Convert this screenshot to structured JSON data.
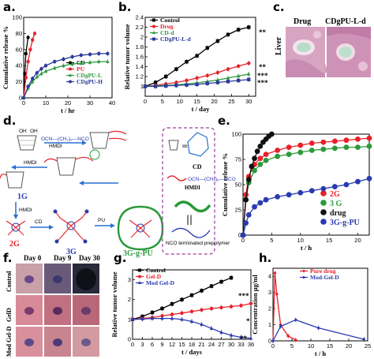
{
  "panels": {
    "a": "a.",
    "b": "b.",
    "c": "c.",
    "d": "d.",
    "e": "e.",
    "f": "f.",
    "g": "g.",
    "h": "h."
  },
  "photo_c": {
    "col1": "Drug",
    "col2": "CDgPU-L-d",
    "row": "Liver",
    "colors": [
      "#d9a8c0",
      "#c98ab0",
      "#e8c8d8",
      "#b8dcc8"
    ]
  },
  "photo_f": {
    "cols": [
      "Day 0",
      "Day 9",
      "Day 30"
    ],
    "rows": [
      "Control",
      "GelD",
      "Mod Gel-D"
    ]
  },
  "scheme_d": {
    "hmdi_text": "OCN—(CH₂)₆—NCO",
    "hmdi": "HMDI",
    "cd": "CD",
    "g1": "1G",
    "g2": "2G",
    "g3": "3G",
    "g3pu": "3G-g-PU",
    "pu": "PU",
    "prepolymer": "NCO terminated prepolymer",
    "oh": "OH"
  },
  "chart_data": [
    {
      "id": "a",
      "type": "line",
      "xlabel": "t / hr",
      "ylabel": "Cumulative release %",
      "xlim": [
        0,
        40
      ],
      "ylim": [
        0,
        100
      ],
      "xticks": [
        0,
        10,
        20,
        30,
        40
      ],
      "yticks": [
        0,
        20,
        40,
        60,
        80,
        100
      ],
      "legend_position": "bottom-right",
      "series": [
        {
          "name": "CD",
          "color": "#000000",
          "x": [
            0,
            0.5,
            1,
            2
          ],
          "y": [
            0,
            30,
            55,
            75
          ]
        },
        {
          "name": "PU",
          "color": "#e8202a",
          "x": [
            0,
            1,
            2,
            3,
            4,
            5
          ],
          "y": [
            0,
            25,
            45,
            60,
            72,
            80
          ]
        },
        {
          "name": "CDgPU-L",
          "color": "#2a9a3a",
          "x": [
            0,
            2,
            4,
            6,
            8,
            10,
            14,
            18,
            22,
            26,
            30,
            34,
            38
          ],
          "y": [
            0,
            12,
            20,
            26,
            30,
            33,
            37,
            40,
            42,
            43,
            44,
            45,
            45
          ]
        },
        {
          "name": "CDgPU-H",
          "color": "#2a3a9a",
          "x": [
            0,
            2,
            4,
            6,
            8,
            10,
            14,
            18,
            22,
            26,
            30,
            34,
            38
          ],
          "y": [
            0,
            14,
            24,
            31,
            36,
            40,
            45,
            48,
            51,
            53,
            54,
            55,
            55
          ]
        }
      ]
    },
    {
      "id": "b",
      "type": "line",
      "xlabel": "t / day",
      "ylabel": "Relative tumor volume",
      "xlim": [
        0,
        32
      ],
      "ylim": [
        0.8,
        2.4
      ],
      "xticks": [
        0,
        5,
        10,
        15,
        20,
        25,
        30
      ],
      "yticks": [
        1.0,
        1.2,
        1.4,
        1.6,
        1.8,
        2.0,
        2.2,
        2.4
      ],
      "legend_position": "top-left",
      "annotations": [
        "**",
        "**",
        "***",
        "***"
      ],
      "series": [
        {
          "name": "Control",
          "color": "#000000",
          "x": [
            0,
            3,
            6,
            9,
            12,
            15,
            18,
            21,
            24,
            27,
            30
          ],
          "y": [
            1.0,
            1.08,
            1.2,
            1.35,
            1.5,
            1.62,
            1.78,
            1.92,
            2.05,
            2.15,
            2.2
          ]
        },
        {
          "name": "Drug",
          "color": "#e8202a",
          "x": [
            0,
            3,
            6,
            9,
            12,
            15,
            18,
            21,
            24,
            27,
            30
          ],
          "y": [
            1.0,
            1.02,
            1.05,
            1.08,
            1.12,
            1.17,
            1.22,
            1.28,
            1.35,
            1.41,
            1.47
          ]
        },
        {
          "name": "CD-d",
          "color": "#2a9a3a",
          "x": [
            0,
            3,
            6,
            9,
            12,
            15,
            18,
            21,
            24,
            27,
            30
          ],
          "y": [
            1.0,
            1.01,
            1.02,
            1.03,
            1.05,
            1.07,
            1.1,
            1.13,
            1.17,
            1.21,
            1.25
          ]
        },
        {
          "name": "CDgPU-L-d",
          "color": "#2a3a9a",
          "x": [
            0,
            3,
            6,
            9,
            12,
            15,
            18,
            21,
            24,
            27,
            30
          ],
          "y": [
            1.0,
            1.0,
            1.01,
            1.02,
            1.03,
            1.04,
            1.06,
            1.08,
            1.1,
            1.12,
            1.14
          ]
        }
      ]
    },
    {
      "id": "e",
      "type": "line",
      "xlabel": "t / h",
      "ylabel": "Cumulative release %",
      "xlim": [
        0,
        22
      ],
      "ylim": [
        0,
        100
      ],
      "xticks": [
        0,
        5,
        10,
        15,
        20
      ],
      "yticks": [
        0,
        25,
        50,
        75,
        100
      ],
      "legend_position": "bottom-right",
      "series": [
        {
          "name": "2G",
          "color": "#e8202a",
          "x": [
            0,
            0.5,
            1,
            2,
            3,
            4,
            6,
            8,
            10,
            12,
            14,
            16,
            18,
            20,
            22
          ],
          "y": [
            0,
            40,
            58,
            70,
            76,
            80,
            84,
            87,
            89,
            91,
            92,
            93,
            94,
            95,
            96
          ]
        },
        {
          "name": "3 G",
          "color": "#2a9a3a",
          "x": [
            0,
            0.5,
            1,
            2,
            3,
            4,
            6,
            8,
            10,
            12,
            14,
            16,
            18,
            20,
            22
          ],
          "y": [
            0,
            35,
            52,
            64,
            70,
            74,
            78,
            80,
            82,
            84,
            85,
            86,
            87,
            87,
            88
          ]
        },
        {
          "name": "drug",
          "color": "#111111",
          "x": [
            0,
            0.5,
            1,
            1.5,
            2,
            2.5,
            3,
            3.5,
            4,
            4.5,
            5
          ],
          "y": [
            0,
            35,
            55,
            68,
            76,
            83,
            88,
            92,
            95,
            98,
            100
          ]
        },
        {
          "name": "3G-g-PU",
          "color": "#2a3ab0",
          "x": [
            0,
            0.5,
            1,
            2,
            3,
            4,
            6,
            8,
            10,
            12,
            14,
            16,
            18,
            20,
            22
          ],
          "y": [
            0,
            12,
            20,
            28,
            32,
            35,
            38,
            40,
            42,
            44,
            46,
            48,
            50,
            53,
            56
          ]
        }
      ]
    },
    {
      "id": "g",
      "type": "line",
      "xlabel": "t / days",
      "ylabel": "Relative tumor volume",
      "xlim": [
        0,
        36
      ],
      "ylim": [
        0,
        3.5
      ],
      "xticks": [
        0,
        3,
        6,
        9,
        12,
        15,
        18,
        21,
        24,
        27,
        30,
        33,
        36
      ],
      "yticks": [
        0,
        1,
        2,
        3
      ],
      "legend_position": "top-left",
      "annotations": [
        "***",
        "*",
        "**"
      ],
      "series": [
        {
          "name": "Control",
          "color": "#000000",
          "x": [
            0,
            3,
            6,
            9,
            12,
            15,
            18,
            21,
            24,
            27,
            30
          ],
          "y": [
            1.0,
            1.15,
            1.35,
            1.55,
            1.78,
            2.0,
            2.22,
            2.45,
            2.68,
            2.9,
            3.1
          ]
        },
        {
          "name": "Gel-D",
          "color": "#e8202a",
          "x": [
            0,
            3,
            6,
            9,
            12,
            15,
            18,
            21,
            24,
            27,
            30,
            33,
            36
          ],
          "y": [
            1.0,
            1.05,
            1.1,
            1.18,
            1.25,
            1.32,
            1.4,
            1.48,
            1.55,
            1.6,
            1.65,
            1.7,
            1.8
          ]
        },
        {
          "name": "Mod Gel-D",
          "color": "#2a3ab0",
          "x": [
            0,
            3,
            6,
            9,
            12,
            15,
            18,
            21,
            24,
            27,
            30,
            33,
            36
          ],
          "y": [
            1.0,
            1.02,
            1.05,
            1.05,
            1.05,
            1.0,
            0.9,
            0.75,
            0.55,
            0.35,
            0.2,
            0.1,
            0.05
          ]
        }
      ]
    },
    {
      "id": "h",
      "type": "line",
      "xlabel": "t / h",
      "ylabel": "Concentration µg/ml",
      "xlim": [
        0,
        25
      ],
      "ylim": [
        0,
        4.5
      ],
      "xticks": [
        0,
        5,
        10,
        15,
        20,
        25
      ],
      "yticks": [
        0,
        1,
        2,
        3,
        4
      ],
      "legend_position": "top-right",
      "series": [
        {
          "name": "Pure drug",
          "color": "#e8202a",
          "x": [
            0,
            0.5,
            1,
            2,
            4,
            6
          ],
          "y": [
            0,
            4.2,
            2.9,
            1.0,
            0.3,
            0.05
          ]
        },
        {
          "name": "Mod-Gel-D",
          "color": "#2a3ab0",
          "x": [
            0,
            2,
            6,
            12,
            24
          ],
          "y": [
            0,
            0.9,
            1.3,
            0.8,
            0.1
          ]
        }
      ]
    }
  ]
}
